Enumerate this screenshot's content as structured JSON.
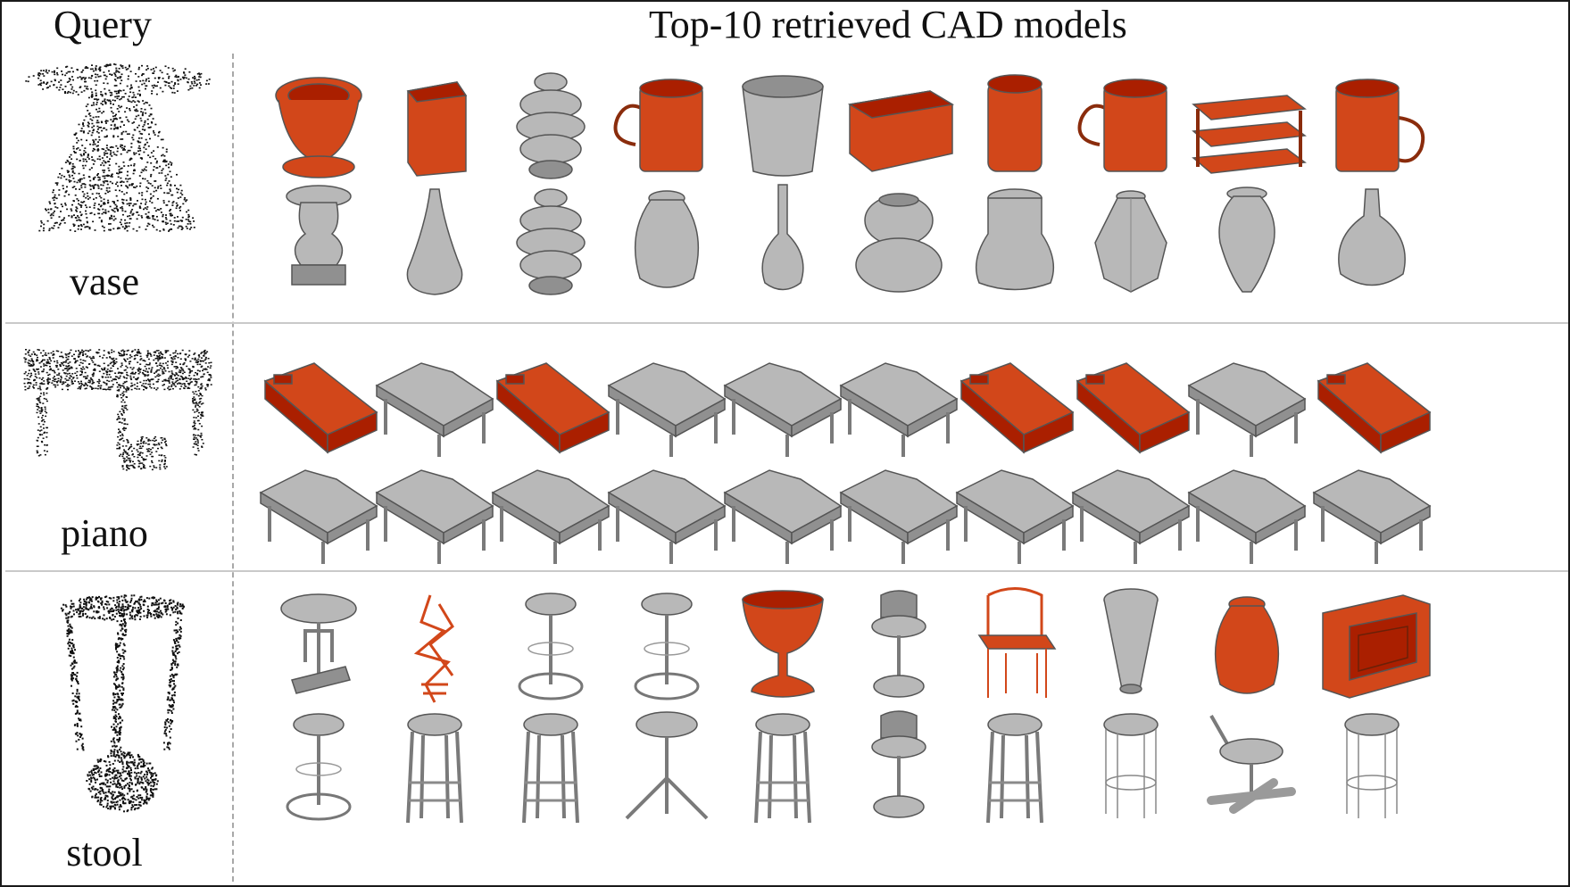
{
  "headers": {
    "query": "Query",
    "results": "Top-10 retrieved CAD models"
  },
  "colors": {
    "correct": "#b8b8b8",
    "incorrect": "#d2471a",
    "point_cloud": "#111111",
    "separator": "#c9c9c9"
  },
  "rows": [
    {
      "label": "vase",
      "query_shape": "vase",
      "methods": [
        {
          "results": [
            {
              "shape": "toilet",
              "match": false
            },
            {
              "shape": "box",
              "match": false
            },
            {
              "shape": "stacked-vase",
              "match": true
            },
            {
              "shape": "mug",
              "match": false
            },
            {
              "shape": "cup",
              "match": true
            },
            {
              "shape": "crate",
              "match": false
            },
            {
              "shape": "cylinder",
              "match": false
            },
            {
              "shape": "mug",
              "match": false
            },
            {
              "shape": "shelf",
              "match": false
            },
            {
              "shape": "mug-right",
              "match": false
            }
          ]
        },
        {
          "results": [
            {
              "shape": "urn",
              "match": true
            },
            {
              "shape": "tall-bottle",
              "match": true
            },
            {
              "shape": "stacked-vase",
              "match": true
            },
            {
              "shape": "vase",
              "match": true
            },
            {
              "shape": "bottle",
              "match": true
            },
            {
              "shape": "round-vase",
              "match": true
            },
            {
              "shape": "pot",
              "match": true
            },
            {
              "shape": "faceted-vase",
              "match": true
            },
            {
              "shape": "amphora",
              "match": true
            },
            {
              "shape": "round-bottle",
              "match": true
            }
          ]
        }
      ]
    },
    {
      "label": "piano",
      "query_shape": "piano",
      "methods": [
        {
          "results": [
            {
              "shape": "bed",
              "match": false
            },
            {
              "shape": "piano",
              "match": true
            },
            {
              "shape": "bed",
              "match": false
            },
            {
              "shape": "piano",
              "match": true
            },
            {
              "shape": "piano",
              "match": true
            },
            {
              "shape": "piano",
              "match": true
            },
            {
              "shape": "bed",
              "match": false
            },
            {
              "shape": "bed",
              "match": false
            },
            {
              "shape": "piano",
              "match": true
            },
            {
              "shape": "bed",
              "match": false
            }
          ]
        },
        {
          "results": [
            {
              "shape": "piano",
              "match": true
            },
            {
              "shape": "piano",
              "match": true
            },
            {
              "shape": "piano",
              "match": true
            },
            {
              "shape": "piano",
              "match": true
            },
            {
              "shape": "piano",
              "match": true
            },
            {
              "shape": "piano",
              "match": true
            },
            {
              "shape": "piano",
              "match": true
            },
            {
              "shape": "piano",
              "match": true
            },
            {
              "shape": "piano",
              "match": true
            },
            {
              "shape": "piano",
              "match": true
            }
          ]
        }
      ]
    },
    {
      "label": "stool",
      "query_shape": "stool",
      "methods": [
        {
          "results": [
            {
              "shape": "stool",
              "match": true
            },
            {
              "shape": "plant",
              "match": false
            },
            {
              "shape": "stool-ring",
              "match": true
            },
            {
              "shape": "stool-ring",
              "match": true
            },
            {
              "shape": "goblet",
              "match": false
            },
            {
              "shape": "barstool",
              "match": true
            },
            {
              "shape": "chair-wire",
              "match": false
            },
            {
              "shape": "cone",
              "match": true
            },
            {
              "shape": "vase",
              "match": false
            },
            {
              "shape": "book",
              "match": false
            }
          ]
        },
        {
          "results": [
            {
              "shape": "stool-ring",
              "match": true
            },
            {
              "shape": "stool-legs",
              "match": true
            },
            {
              "shape": "stool-legs",
              "match": true
            },
            {
              "shape": "tripod",
              "match": true
            },
            {
              "shape": "stool-legs",
              "match": true
            },
            {
              "shape": "barstool",
              "match": true
            },
            {
              "shape": "stool-legs",
              "match": true
            },
            {
              "shape": "stool-wire",
              "match": true
            },
            {
              "shape": "office-chair",
              "match": true
            },
            {
              "shape": "stool-wire",
              "match": true
            }
          ]
        }
      ]
    }
  ]
}
